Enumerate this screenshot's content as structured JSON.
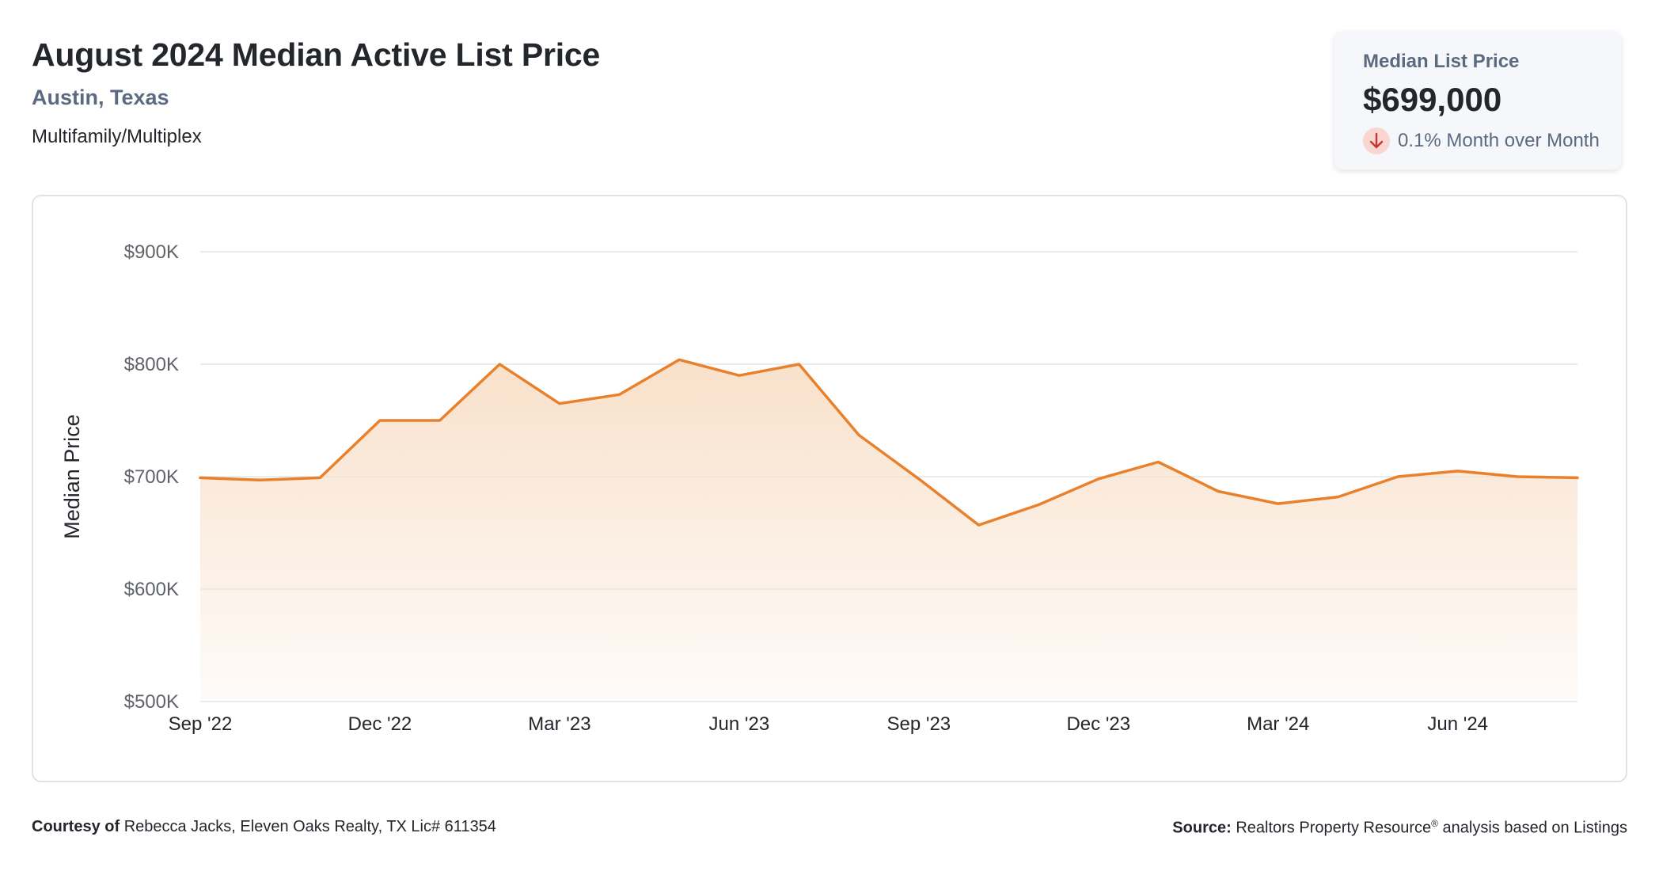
{
  "header": {
    "title": "August 2024 Median Active List Price",
    "location": "Austin, Texas",
    "property_type": "Multifamily/Multiplex"
  },
  "stat_card": {
    "label": "Median List Price",
    "value": "$699,000",
    "change_text": "0.1% Month over Month",
    "direction_icon": "arrow-down-icon"
  },
  "footer": {
    "courtesy_label": "Courtesy of",
    "courtesy_text": "Rebecca Jacks, Eleven Oaks Realty, TX Lic# 611354",
    "source_label": "Source:",
    "source_name": "Realtors Property Resource",
    "source_mark": "®",
    "source_rest": "analysis based on Listings"
  },
  "colors": {
    "line": "#e8802c",
    "fill_top": "#f8dfc8",
    "grid": "#e3e6ea",
    "down_icon": "#c9352a",
    "down_bg": "#f9d6d2"
  },
  "chart_data": {
    "type": "area",
    "ylabel": "Median Price",
    "xlabel": "",
    "ylim": [
      500000,
      900000
    ],
    "yticks": [
      500000,
      600000,
      700000,
      800000,
      900000
    ],
    "ytick_labels": [
      "$500K",
      "$600K",
      "$700K",
      "$800K",
      "$900K"
    ],
    "xtick_labels": [
      "Sep '22",
      "Dec '22",
      "Mar '23",
      "Jun '23",
      "Sep '23",
      "Dec '23",
      "Mar '24",
      "Jun '24"
    ],
    "xtick_indices": [
      0,
      3,
      6,
      9,
      12,
      15,
      18,
      21
    ],
    "grid": true,
    "x": [
      "Sep '22",
      "Oct '22",
      "Nov '22",
      "Dec '22",
      "Jan '23",
      "Feb '23",
      "Mar '23",
      "Apr '23",
      "May '23",
      "Jun '23",
      "Jul '23",
      "Aug '23",
      "Sep '23",
      "Oct '23",
      "Nov '23",
      "Dec '23",
      "Jan '24",
      "Feb '24",
      "Mar '24",
      "Apr '24",
      "May '24",
      "Jun '24",
      "Jul '24",
      "Aug '24"
    ],
    "series": [
      {
        "values": [
          699000,
          697000,
          699000,
          750000,
          750000,
          800000,
          765000,
          773000,
          804000,
          790000,
          800000,
          737000,
          698000,
          657000,
          675000,
          698000,
          713000,
          687000,
          676000,
          682000,
          700000,
          705000,
          700000,
          699000
        ]
      }
    ]
  }
}
